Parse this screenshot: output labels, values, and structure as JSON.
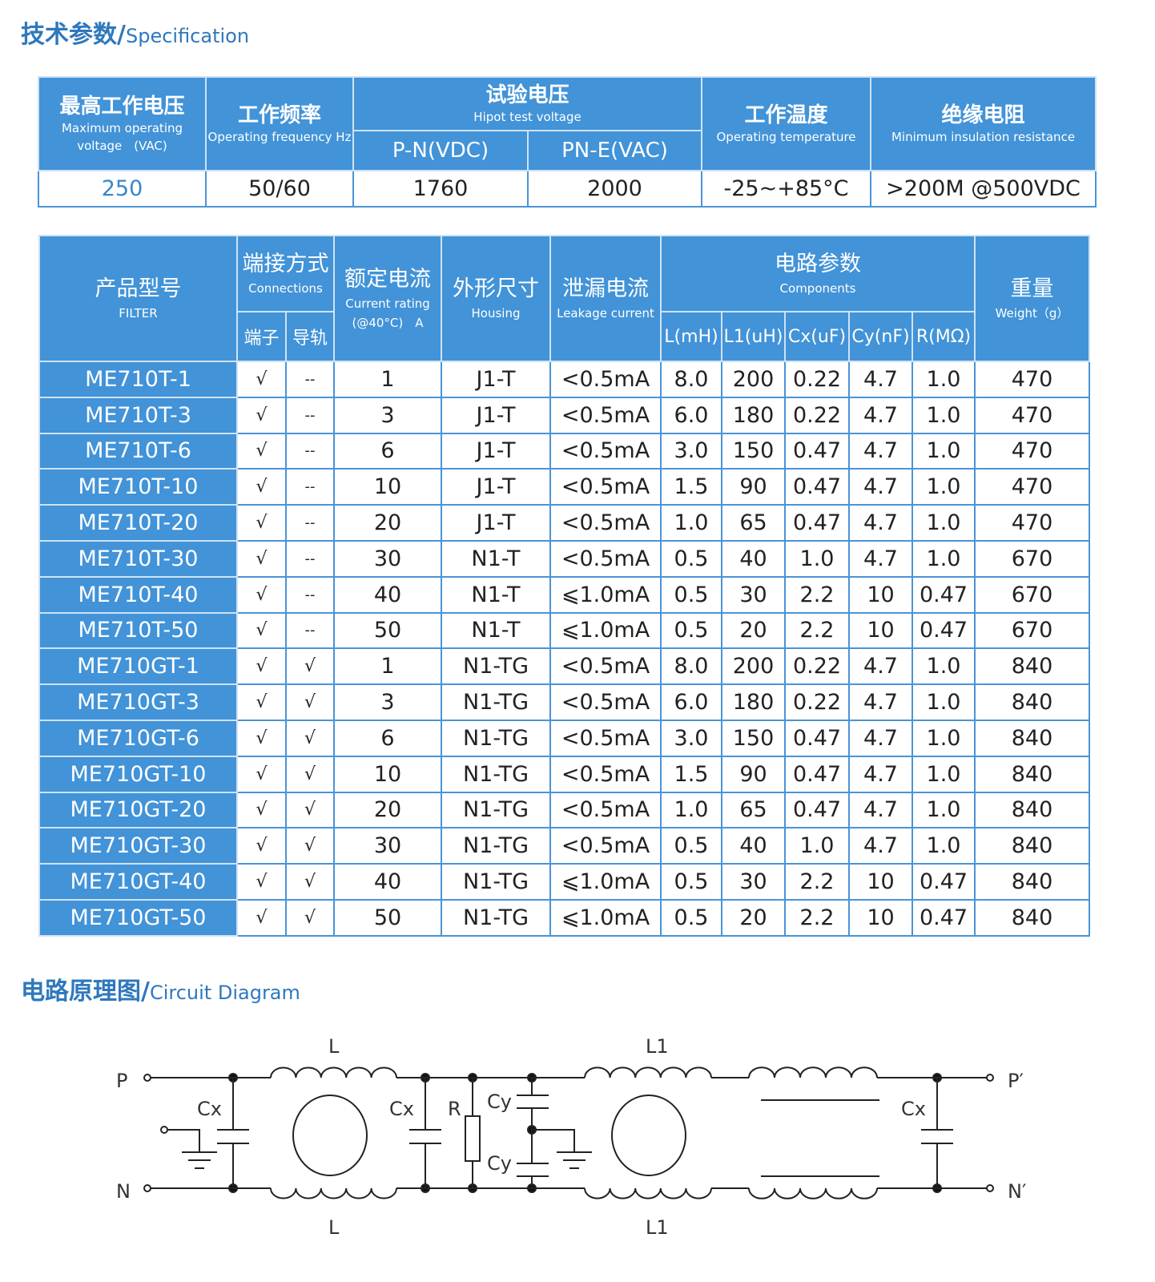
{
  "spec_title": {
    "zh": "技术参数/",
    "en": "Specification"
  },
  "spec_table": {
    "headers": [
      {
        "zh": "最高工作电压",
        "en": "Maximum operating voltage　(VAC)"
      },
      {
        "zh": "工作频率",
        "en": "Operating frequency Hz"
      },
      {
        "zh": "试验电压",
        "en": "Hipot test voltage",
        "sub": [
          "P-N(VDC)",
          "PN-E(VAC)"
        ]
      },
      {
        "zh": "工作温度",
        "en": "Operating temperature"
      },
      {
        "zh": "绝缘电阻",
        "en": "Minimum insulation resistance"
      }
    ],
    "values": [
      "250",
      "50/60",
      "1760",
      "2000",
      "-25~+85°C",
      ">200M @500VDC"
    ]
  },
  "filter_table": {
    "headers": {
      "model": {
        "zh": "产品型号",
        "en": "FILTER"
      },
      "connections": {
        "zh": "端接方式",
        "en": "Connections",
        "sub": [
          "端子",
          "导轨"
        ]
      },
      "current": {
        "zh": "额定电流",
        "en": "Current rating (@40°C)　A"
      },
      "housing": {
        "zh": "外形尺寸",
        "en": "Housing"
      },
      "leakage": {
        "zh": "泄漏电流",
        "en": "Leakage current"
      },
      "components": {
        "zh": "电路参数",
        "en": "Components",
        "sub": [
          "L(mH)",
          "L1(uH)",
          "Cx(uF)",
          "Cy(nF)",
          "R(MΩ)"
        ]
      },
      "weight": {
        "zh": "重量",
        "en": "Weight（g）"
      }
    },
    "rows": [
      [
        "ME710T-1",
        "√",
        "--",
        "1",
        "J1-T",
        "<0.5mA",
        "8.0",
        "200",
        "0.22",
        "4.7",
        "1.0",
        "470"
      ],
      [
        "ME710T-3",
        "√",
        "--",
        "3",
        "J1-T",
        "<0.5mA",
        "6.0",
        "180",
        "0.22",
        "4.7",
        "1.0",
        "470"
      ],
      [
        "ME710T-6",
        "√",
        "--",
        "6",
        "J1-T",
        "<0.5mA",
        "3.0",
        "150",
        "0.47",
        "4.7",
        "1.0",
        "470"
      ],
      [
        "ME710T-10",
        "√",
        "--",
        "10",
        "J1-T",
        "<0.5mA",
        "1.5",
        "90",
        "0.47",
        "4.7",
        "1.0",
        "470"
      ],
      [
        "ME710T-20",
        "√",
        "--",
        "20",
        "J1-T",
        "<0.5mA",
        "1.0",
        "65",
        "0.47",
        "4.7",
        "1.0",
        "470"
      ],
      [
        "ME710T-30",
        "√",
        "--",
        "30",
        "N1-T",
        "<0.5mA",
        "0.5",
        "40",
        "1.0",
        "4.7",
        "1.0",
        "670"
      ],
      [
        "ME710T-40",
        "√",
        "--",
        "40",
        "N1-T",
        "⩽1.0mA",
        "0.5",
        "30",
        "2.2",
        "10",
        "0.47",
        "670"
      ],
      [
        "ME710T-50",
        "√",
        "--",
        "50",
        "N1-T",
        "⩽1.0mA",
        "0.5",
        "20",
        "2.2",
        "10",
        "0.47",
        "670"
      ],
      [
        "ME710GT-1",
        "√",
        "√",
        "1",
        "N1-TG",
        "<0.5mA",
        "8.0",
        "200",
        "0.22",
        "4.7",
        "1.0",
        "840"
      ],
      [
        "ME710GT-3",
        "√",
        "√",
        "3",
        "N1-TG",
        "<0.5mA",
        "6.0",
        "180",
        "0.22",
        "4.7",
        "1.0",
        "840"
      ],
      [
        "ME710GT-6",
        "√",
        "√",
        "6",
        "N1-TG",
        "<0.5mA",
        "3.0",
        "150",
        "0.47",
        "4.7",
        "1.0",
        "840"
      ],
      [
        "ME710GT-10",
        "√",
        "√",
        "10",
        "N1-TG",
        "<0.5mA",
        "1.5",
        "90",
        "0.47",
        "4.7",
        "1.0",
        "840"
      ],
      [
        "ME710GT-20",
        "√",
        "√",
        "20",
        "N1-TG",
        "<0.5mA",
        "1.0",
        "65",
        "0.47",
        "4.7",
        "1.0",
        "840"
      ],
      [
        "ME710GT-30",
        "√",
        "√",
        "30",
        "N1-TG",
        "<0.5mA",
        "0.5",
        "40",
        "1.0",
        "4.7",
        "1.0",
        "840"
      ],
      [
        "ME710GT-40",
        "√",
        "√",
        "40",
        "N1-TG",
        "⩽1.0mA",
        "0.5",
        "30",
        "2.2",
        "10",
        "0.47",
        "840"
      ],
      [
        "ME710GT-50",
        "√",
        "√",
        "50",
        "N1-TG",
        "⩽1.0mA",
        "0.5",
        "20",
        "2.2",
        "10",
        "0.47",
        "840"
      ]
    ]
  },
  "circuit_title": {
    "zh": "电路原理图/",
    "en": "Circuit Diagram"
  },
  "circuit": {
    "labels": {
      "P": "P",
      "N": "N",
      "P_out": "P′",
      "N_out": "N′",
      "L": "L",
      "L1": "L1",
      "Cx": "Cx",
      "R": "R",
      "Cy": "Cy"
    }
  },
  "colors": {
    "accent": "#4293d8",
    "title": "#2f78bd"
  }
}
